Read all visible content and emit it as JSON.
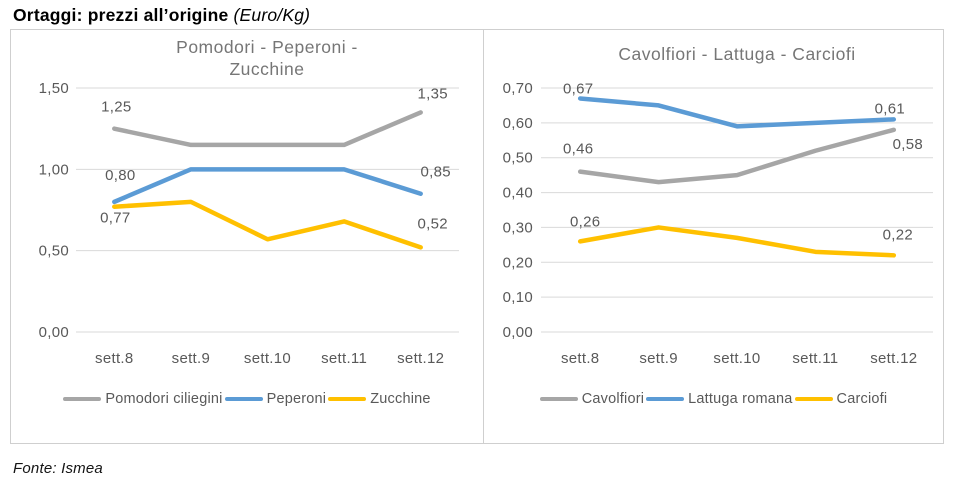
{
  "header": {
    "title_bold": "Ortaggi: prezzi all’origine",
    "title_unit": "(Euro/Kg)"
  },
  "footer": {
    "source": "Fonte: Ismea"
  },
  "colors": {
    "grey_series": "#a6a6a6",
    "blue_series": "#5b9bd5",
    "yellow_series": "#ffc000",
    "gridline": "#d9d9d9",
    "axis_text": "#595959",
    "data_label_text": "#595959",
    "title_text": "#767676",
    "panel_border": "#cfcfcf"
  },
  "chart_data": [
    {
      "type": "line",
      "title": "Pomodori - Peperoni - Zucchine",
      "categories": [
        "sett.8",
        "sett.9",
        "sett.10",
        "sett.11",
        "sett.12"
      ],
      "y_ticks": [
        "1,50",
        "1,00",
        "0,50",
        "0,00"
      ],
      "ylim": [
        0.0,
        1.5
      ],
      "y_step": 0.5,
      "xlabel": "",
      "ylabel": "",
      "grid": true,
      "legend_position": "bottom",
      "series": [
        {
          "name": "Pomodori ciliegini",
          "color": "#a6a6a6",
          "values": [
            1.25,
            1.15,
            1.15,
            1.15,
            1.35
          ],
          "labels": [
            {
              "i": 0,
              "t": "1,25",
              "dx": 2,
              "dy": -17
            },
            {
              "i": 4,
              "t": "1,35",
              "dx": 12,
              "dy": -14
            }
          ]
        },
        {
          "name": "Peperoni",
          "color": "#5b9bd5",
          "values": [
            0.8,
            1.0,
            1.0,
            1.0,
            0.85
          ],
          "labels": [
            {
              "i": 0,
              "t": "0,80",
              "dx": 6,
              "dy": -22
            },
            {
              "i": 4,
              "t": "0,85",
              "dx": 15,
              "dy": -17
            }
          ]
        },
        {
          "name": "Zucchine",
          "color": "#ffc000",
          "values": [
            0.77,
            0.8,
            0.57,
            0.68,
            0.52
          ],
          "labels": [
            {
              "i": 0,
              "t": "0,77",
              "dx": 1,
              "dy": 16
            },
            {
              "i": 4,
              "t": "0,52",
              "dx": 12,
              "dy": -19
            }
          ]
        }
      ]
    },
    {
      "type": "line",
      "title": "Cavolfiori - Lattuga - Carciofi",
      "categories": [
        "sett.8",
        "sett.9",
        "sett.10",
        "sett.11",
        "sett.12"
      ],
      "y_ticks": [
        "0,70",
        "0,60",
        "0,50",
        "0,40",
        "0,30",
        "0,20",
        "0,10",
        "0,00"
      ],
      "ylim": [
        0.0,
        0.7
      ],
      "y_step": 0.1,
      "xlabel": "",
      "ylabel": "",
      "grid": true,
      "legend_position": "bottom",
      "series": [
        {
          "name": "Cavolfiori",
          "color": "#a6a6a6",
          "values": [
            0.46,
            0.43,
            0.45,
            0.52,
            0.58
          ],
          "labels": [
            {
              "i": 0,
              "t": "0,46",
              "dx": -2,
              "dy": -18
            },
            {
              "i": 4,
              "t": "0,58",
              "dx": 14,
              "dy": 19
            }
          ]
        },
        {
          "name": "Lattuga romana",
          "color": "#5b9bd5",
          "values": [
            0.67,
            0.65,
            0.59,
            0.6,
            0.61
          ],
          "labels": [
            {
              "i": 0,
              "t": "0,67",
              "dx": -2,
              "dy": -5
            },
            {
              "i": 4,
              "t": "0,61",
              "dx": -4,
              "dy": -6
            }
          ]
        },
        {
          "name": "Carciofi",
          "color": "#ffc000",
          "values": [
            0.26,
            0.3,
            0.27,
            0.23,
            0.22
          ],
          "labels": [
            {
              "i": 0,
              "t": "0,26",
              "dx": 5,
              "dy": -15
            },
            {
              "i": 4,
              "t": "0,22",
              "dx": 4,
              "dy": -16
            }
          ]
        }
      ]
    }
  ]
}
